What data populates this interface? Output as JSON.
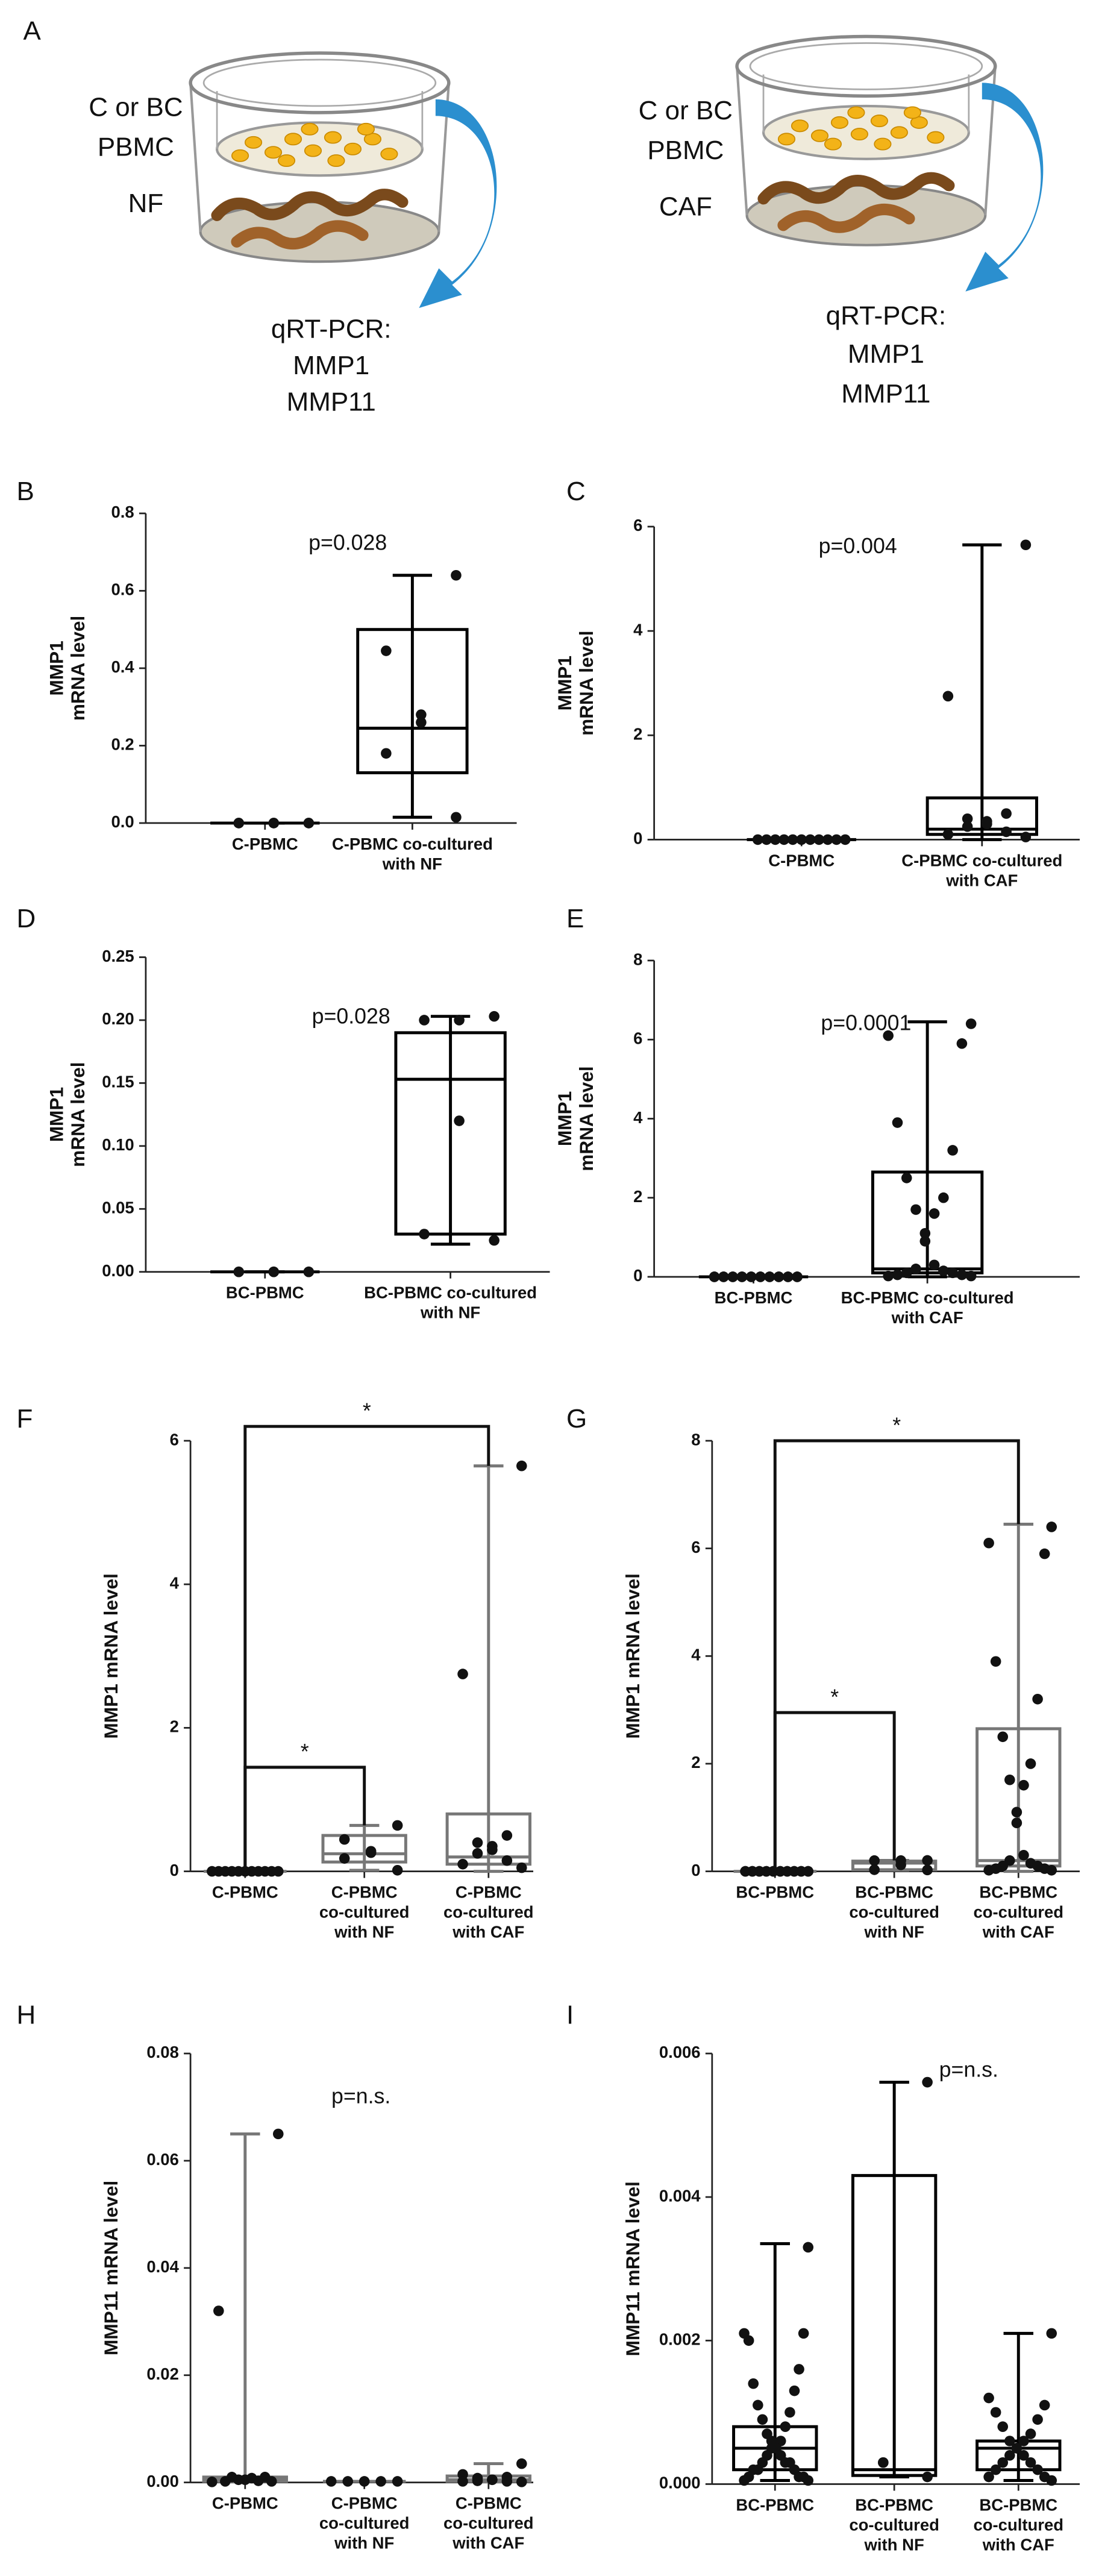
{
  "diagram": {
    "panel": "A",
    "left": {
      "cells": [
        "C or BC",
        "PBMC"
      ],
      "fibroblast": "NF",
      "readout": [
        "qRT-PCR:",
        "MMP1",
        "MMP11"
      ]
    },
    "right": {
      "cells": [
        "C or BC",
        "PBMC"
      ],
      "fibroblast": "CAF",
      "readout": [
        "qRT-PCR:",
        "MMP1",
        "MMP11"
      ]
    }
  },
  "chart_data": [
    {
      "type": "box",
      "panel": "B",
      "ylabel": [
        "MMP1",
        "mRNA level"
      ],
      "annotation": "p=0.028",
      "box_color": "#000000",
      "categories": [
        [
          "C-PBMC"
        ],
        [
          "C-PBMC co-cultured",
          "with NF"
        ]
      ],
      "ylim": [
        0,
        0.8
      ],
      "yticks": [
        {
          "value": 0,
          "label": "0.0"
        },
        0.2,
        0.4,
        0.6,
        0.8
      ],
      "boxes": [
        {
          "min": 0,
          "q1": 0,
          "median": 0,
          "q3": 0,
          "max": 0
        },
        {
          "min": 0.015,
          "q1": 0.13,
          "median": 0.245,
          "q3": 0.5,
          "max": 0.64
        }
      ],
      "points": [
        [
          0,
          0,
          0,
          0,
          0,
          0
        ],
        [
          0.64,
          0.445,
          0.28,
          0.26,
          0.18,
          0.015
        ]
      ]
    },
    {
      "type": "box",
      "panel": "C",
      "ylabel": [
        "MMP1",
        "mRNA level"
      ],
      "annotation": "p=0.004",
      "box_color": "#000000",
      "categories": [
        [
          "C-PBMC"
        ],
        [
          "C-PBMC co-cultured",
          "with CAF"
        ]
      ],
      "ylim": [
        0,
        6
      ],
      "yticks": [
        0,
        2,
        4,
        6
      ],
      "boxes": [
        {
          "min": 0,
          "q1": 0,
          "median": 0,
          "q3": 0,
          "max": 0
        },
        {
          "min": 0,
          "q1": 0.1,
          "median": 0.2,
          "q3": 0.8,
          "max": 5.65
        }
      ],
      "points": [
        [
          0,
          0,
          0,
          0,
          0,
          0,
          0,
          0,
          0,
          0,
          0
        ],
        [
          5.65,
          2.75,
          0.5,
          0.4,
          0.35,
          0.3,
          0.25,
          0.15,
          0.1,
          0.05
        ]
      ]
    },
    {
      "type": "box",
      "panel": "D",
      "ylabel": [
        "MMP1",
        "mRNA level"
      ],
      "annotation": "p=0.028",
      "box_color": "#000000",
      "categories": [
        [
          "BC-PBMC"
        ],
        [
          "BC-PBMC co-cultured",
          "with NF"
        ]
      ],
      "ylim": [
        0,
        0.25
      ],
      "yticks": [
        {
          "value": 0,
          "label": "0.00"
        },
        0.05,
        {
          "value": 0.1,
          "label": "0.10"
        },
        0.15,
        {
          "value": 0.2,
          "label": "0.20"
        },
        0.25
      ],
      "boxes": [
        {
          "min": 0,
          "q1": 0,
          "median": 0,
          "q3": 0,
          "max": 0
        },
        {
          "min": 0.022,
          "q1": 0.03,
          "median": 0.153,
          "q3": 0.19,
          "max": 0.203
        }
      ],
      "points": [
        [
          0,
          0,
          0,
          0,
          0,
          0
        ],
        [
          0.203,
          0.2,
          0.2,
          0.12,
          0.03,
          0.025
        ]
      ]
    },
    {
      "type": "box",
      "panel": "E",
      "ylabel": [
        "MMP1",
        "mRNA level"
      ],
      "annotation": "p=0.0001",
      "box_color": "#000000",
      "categories": [
        [
          "BC-PBMC"
        ],
        [
          "BC-PBMC co-cultured",
          "with CAF"
        ]
      ],
      "ylim": [
        0,
        8
      ],
      "yticks": [
        0,
        2,
        4,
        6,
        8
      ],
      "boxes": [
        {
          "min": 0,
          "q1": 0,
          "median": 0,
          "q3": 0,
          "max": 0
        },
        {
          "min": 0,
          "q1": 0.1,
          "median": 0.2,
          "q3": 2.65,
          "max": 6.45
        }
      ],
      "points": [
        [
          0,
          0,
          0,
          0,
          0,
          0,
          0,
          0,
          0,
          0,
          0,
          0,
          0,
          0,
          0,
          0,
          0,
          0,
          0,
          0
        ],
        [
          6.4,
          6.1,
          5.9,
          3.9,
          3.2,
          2.5,
          2.0,
          1.7,
          1.6,
          1.1,
          0.9,
          0.3,
          0.2,
          0.15,
          0.1,
          0.1,
          0.05,
          0.05,
          0.02,
          0.02
        ]
      ]
    },
    {
      "type": "box",
      "panel": "F",
      "ylabel": [
        "MMP1 mRNA level"
      ],
      "box_color": "#777777",
      "categories": [
        [
          "C-PBMC"
        ],
        [
          "C-PBMC",
          "co-cultured",
          "with NF"
        ],
        [
          "C-PBMC",
          "co-cultured",
          "with CAF"
        ]
      ],
      "ylim": [
        0,
        6
      ],
      "yticks": [
        0,
        2,
        4,
        6
      ],
      "boxes": [
        {
          "min": 0,
          "q1": 0,
          "median": 0,
          "q3": 0,
          "max": 0
        },
        {
          "min": 0.015,
          "q1": 0.13,
          "median": 0.245,
          "q3": 0.5,
          "max": 0.64
        },
        {
          "min": 0,
          "q1": 0.1,
          "median": 0.2,
          "q3": 0.8,
          "max": 5.65
        }
      ],
      "points": [
        [
          0,
          0,
          0,
          0,
          0,
          0,
          0,
          0,
          0,
          0,
          0
        ],
        [
          0.64,
          0.445,
          0.28,
          0.26,
          0.18,
          0.015
        ],
        [
          5.65,
          2.75,
          0.5,
          0.4,
          0.35,
          0.3,
          0.25,
          0.15,
          0.1,
          0.05
        ]
      ],
      "brackets": [
        {
          "from": 0,
          "to": 1,
          "y": 1.45,
          "label": "*"
        },
        {
          "from": 0,
          "to": 2,
          "y": 6.2,
          "label": "*"
        }
      ]
    },
    {
      "type": "box",
      "panel": "G",
      "ylabel": [
        "MMP1 mRNA level"
      ],
      "box_color": "#777777",
      "categories": [
        [
          "BC-PBMC"
        ],
        [
          "BC-PBMC",
          "co-cultured",
          "with NF"
        ],
        [
          "BC-PBMC",
          "co-cultured",
          "with CAF"
        ]
      ],
      "ylim": [
        0,
        8
      ],
      "yticks": [
        0,
        2,
        4,
        6,
        8
      ],
      "boxes": [
        {
          "min": 0,
          "q1": 0,
          "median": 0,
          "q3": 0,
          "max": 0
        },
        {
          "min": 0.022,
          "q1": 0.03,
          "median": 0.153,
          "q3": 0.19,
          "max": 0.203
        },
        {
          "min": 0,
          "q1": 0.1,
          "median": 0.2,
          "q3": 2.65,
          "max": 6.45
        }
      ],
      "points": [
        [
          0,
          0,
          0,
          0,
          0,
          0,
          0,
          0,
          0,
          0,
          0,
          0,
          0,
          0,
          0,
          0,
          0,
          0,
          0,
          0
        ],
        [
          0.203,
          0.2,
          0.2,
          0.12,
          0.03,
          0.025
        ],
        [
          6.4,
          6.1,
          5.9,
          3.9,
          3.2,
          2.5,
          2.0,
          1.7,
          1.6,
          1.1,
          0.9,
          0.3,
          0.2,
          0.15,
          0.1,
          0.1,
          0.05,
          0.05,
          0.02,
          0.02
        ]
      ],
      "brackets": [
        {
          "from": 0,
          "to": 1,
          "y": 2.95,
          "label": "*"
        },
        {
          "from": 0,
          "to": 2,
          "y": 8,
          "label": "*"
        }
      ]
    },
    {
      "type": "box",
      "panel": "H",
      "ylabel": [
        "MMP11 mRNA level"
      ],
      "annotation": "p=n.s.",
      "box_color": "#777777",
      "categories": [
        [
          "C-PBMC"
        ],
        [
          "C-PBMC",
          "co-cultured",
          "with NF"
        ],
        [
          "C-PBMC",
          "co-cultured",
          "with CAF"
        ]
      ],
      "ylim": [
        0,
        0.08
      ],
      "yticks": [
        {
          "value": 0,
          "label": "0.00"
        },
        0.02,
        0.04,
        0.06,
        0.08
      ],
      "boxes": [
        {
          "min": 0.0001,
          "q1": 0.0002,
          "median": 0.0005,
          "q3": 0.001,
          "max": 0.065
        },
        {
          "min": 0.0002,
          "q1": 0.0002,
          "median": 0.0002,
          "q3": 0.0002,
          "max": 0.0002
        },
        {
          "min": 0.0001,
          "q1": 0.0002,
          "median": 0.0005,
          "q3": 0.0012,
          "max": 0.0035
        }
      ],
      "points": [
        [
          0.065,
          0.032,
          0.001,
          0.001,
          0.0008,
          0.0005,
          0.0005,
          0.0003,
          0.0002,
          0.0002,
          0.0001
        ],
        [
          0.0002,
          0.0002,
          0.0002,
          0.0002,
          0.0002
        ],
        [
          0.0035,
          0.0015,
          0.001,
          0.0008,
          0.0005,
          0.0005,
          0.0003,
          0.0002,
          0.0002,
          0.0001
        ]
      ]
    },
    {
      "type": "box",
      "panel": "I",
      "ylabel": [
        "MMP11 mRNA level"
      ],
      "annotation": "p=n.s.",
      "box_color": "#000000",
      "categories": [
        [
          "BC-PBMC"
        ],
        [
          "BC-PBMC",
          "co-cultured",
          "with NF"
        ],
        [
          "BC-PBMC",
          "co-cultured",
          "with CAF"
        ]
      ],
      "ylim": [
        0,
        0.006
      ],
      "yticks": [
        {
          "value": 0,
          "label": "0.000"
        },
        0.002,
        0.004,
        0.006
      ],
      "boxes": [
        {
          "min": 5e-05,
          "q1": 0.0002,
          "median": 0.0005,
          "q3": 0.0008,
          "max": 0.00335
        },
        {
          "min": 0.0001,
          "q1": 0.00012,
          "median": 0.0002,
          "q3": 0.0043,
          "max": 0.0056
        },
        {
          "min": 5e-05,
          "q1": 0.0002,
          "median": 0.0005,
          "q3": 0.0006,
          "max": 0.0021
        }
      ],
      "points": [
        [
          0.0033,
          0.0021,
          0.0021,
          0.002,
          0.0016,
          0.0014,
          0.0013,
          0.0011,
          0.001,
          0.0009,
          0.0008,
          0.0007,
          0.0006,
          0.0006,
          0.0005,
          0.0005,
          0.0005,
          0.0004,
          0.0004,
          0.0003,
          0.0003,
          0.0003,
          0.0002,
          0.0002,
          0.0002,
          0.0001,
          0.0001,
          0.0001,
          5e-05,
          5e-05
        ],
        [
          0.0056,
          0.0003,
          0.0003,
          0.0001
        ],
        [
          0.0021,
          0.0012,
          0.0011,
          0.001,
          0.0009,
          0.0008,
          0.0007,
          0.0006,
          0.0006,
          0.0005,
          0.0005,
          0.0004,
          0.0004,
          0.0003,
          0.0003,
          0.0002,
          0.0002,
          0.0001,
          0.0001,
          5e-05
        ]
      ]
    }
  ]
}
